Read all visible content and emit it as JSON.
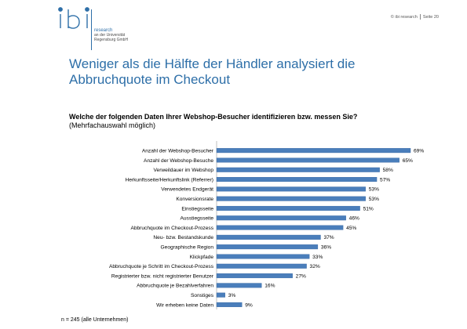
{
  "brand": {
    "logo_label": "ibi",
    "name": "research",
    "line1": "an der Universität",
    "line2": "Regensburg GmbH"
  },
  "header": {
    "copyright": "© ibi research",
    "page": "Seite 20"
  },
  "title_line1": "Weniger als die Hälfte der Händler analysiert die",
  "title_line2": "Abbruchquote im Checkout",
  "question_bold": "Welche der folgenden Daten Ihrer Webshop-Besucher identifizieren bzw. messen Sie?",
  "question_note": "(Mehrfachauswahl möglich)",
  "footnote": "n = 245 (alle Unternehmen)",
  "colors": {
    "bar": "#4a7ebb",
    "bar_edge": "#3b6aa3",
    "title": "#2e6fa8"
  },
  "chart_data": {
    "type": "bar",
    "orientation": "horizontal",
    "categories": [
      "Anzahl der Webshop-Besucher",
      "Anzahl der Webshop-Besuche",
      "Verweildauer im Webshop",
      "Herkunftsseite/Herkunftslink (Referrer)",
      "Verwendetes Endgerät",
      "Konversionsrate",
      "Einstiegsseite",
      "Ausstiegsseite",
      "Abbruchquote im Checkout-Prozess",
      "Neu- bzw. Bestandskunde",
      "Geographische Region",
      "Klickpfade",
      "Abbruchquote je Schritt im Checkout-Prozess",
      "Registrierter bzw. nicht registrierter Benutzer",
      "Abbruchquote je Bezahlverfahren",
      "Sonstiges",
      "Wir erheben keine Daten"
    ],
    "values": [
      69,
      65,
      58,
      57,
      53,
      53,
      51,
      46,
      45,
      37,
      36,
      33,
      32,
      27,
      16,
      3,
      9
    ],
    "value_labels": [
      "69%",
      "65%",
      "58%",
      "57%",
      "53%",
      "53%",
      "51%",
      "46%",
      "45%",
      "37%",
      "36%",
      "33%",
      "32%",
      "27%",
      "16%",
      "3%",
      "9%"
    ],
    "xlim": [
      0,
      100
    ]
  }
}
